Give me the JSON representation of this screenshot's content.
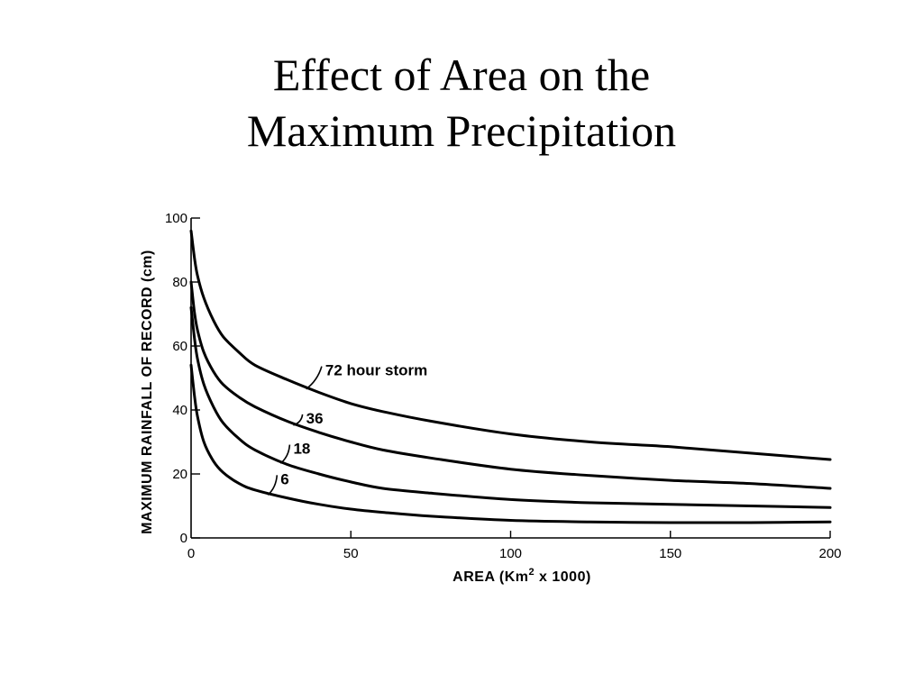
{
  "slide": {
    "title_line1": "Effect of Area on the",
    "title_line2": "Maximum Precipitation"
  },
  "chart_data": {
    "type": "line",
    "xlabel": "AREA (Km",
    "xlabel_sup": "2",
    "xlabel_suffix": " x 1000)",
    "ylabel": "MAXIMUM RAINFALL OF RECORD (cm)",
    "xlim": [
      0,
      200
    ],
    "ylim": [
      0,
      100
    ],
    "xticks": [
      0,
      50,
      100,
      150,
      200
    ],
    "yticks": [
      0,
      20,
      40,
      60,
      80,
      100
    ],
    "grid": false,
    "line_color": "#000000",
    "series": [
      {
        "name": "72 hour storm",
        "x": [
          0,
          1,
          2,
          4,
          7,
          10,
          15,
          20,
          30,
          40,
          50,
          60,
          75,
          100,
          125,
          150,
          175,
          200
        ],
        "y": [
          96,
          88,
          82,
          75,
          68,
          63,
          58,
          54,
          49.5,
          45.5,
          42,
          39.5,
          36.5,
          32.5,
          30,
          28.5,
          26.5,
          24.5
        ]
      },
      {
        "name": "36",
        "x": [
          0,
          1,
          2,
          4,
          7,
          10,
          15,
          20,
          30,
          40,
          50,
          60,
          75,
          100,
          125,
          150,
          175,
          200
        ],
        "y": [
          80,
          71,
          65,
          58,
          52,
          48,
          44,
          41,
          36.5,
          33,
          30,
          27.5,
          25,
          21.5,
          19.5,
          18,
          17,
          15.5
        ]
      },
      {
        "name": "18",
        "x": [
          0,
          1,
          2,
          4,
          7,
          10,
          15,
          20,
          30,
          40,
          50,
          60,
          75,
          100,
          125,
          150,
          175,
          200
        ],
        "y": [
          72,
          63,
          56,
          48,
          41,
          36,
          31,
          27.5,
          23,
          20,
          17.5,
          15.5,
          14,
          12,
          11,
          10.5,
          10,
          9.5
        ]
      },
      {
        "name": "6",
        "x": [
          0,
          1,
          2,
          4,
          7,
          10,
          15,
          20,
          30,
          40,
          50,
          60,
          75,
          100,
          125,
          150,
          175,
          200
        ],
        "y": [
          54,
          45,
          38,
          30,
          24,
          20.5,
          17,
          15,
          12.5,
          10.5,
          9,
          8,
          6.8,
          5.5,
          5,
          4.8,
          4.8,
          5
        ]
      }
    ],
    "labels": [
      {
        "text": "72 hour storm",
        "series": "72 hour storm",
        "anchor_x": 36,
        "label_x": 42,
        "label_y": 52.5
      },
      {
        "text": "36",
        "series": "36",
        "anchor_x": 32,
        "label_x": 36,
        "label_y": 37.5
      },
      {
        "text": "18",
        "series": "18",
        "anchor_x": 28,
        "label_x": 32,
        "label_y": 28
      },
      {
        "text": "6",
        "series": "6",
        "anchor_x": 24,
        "label_x": 28,
        "label_y": 18.5
      }
    ]
  }
}
